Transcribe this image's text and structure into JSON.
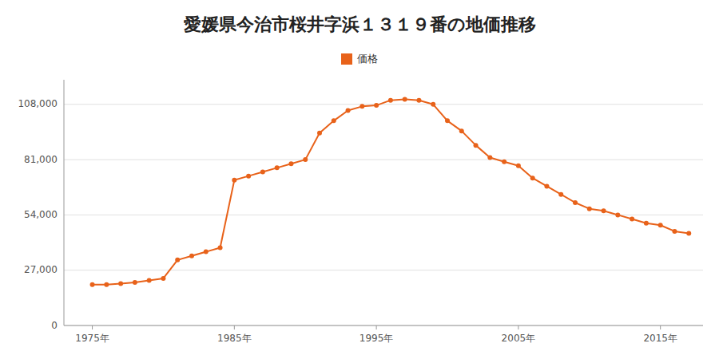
{
  "chart_data": {
    "type": "line",
    "title": "愛媛県今治市桜井字浜１３１９番の地価推移",
    "x": [
      1975,
      1976,
      1977,
      1978,
      1979,
      1980,
      1981,
      1982,
      1983,
      1984,
      1985,
      1986,
      1987,
      1988,
      1989,
      1990,
      1991,
      1992,
      1993,
      1994,
      1995,
      1996,
      1997,
      1998,
      1999,
      2000,
      2001,
      2002,
      2003,
      2004,
      2005,
      2006,
      2007,
      2008,
      2009,
      2010,
      2011,
      2012,
      2013,
      2014,
      2015,
      2016,
      2017
    ],
    "series": [
      {
        "name": "価格",
        "color": "#E8621A",
        "values": [
          20000,
          20000,
          20500,
          21000,
          22000,
          23000,
          32000,
          34000,
          36000,
          38000,
          71000,
          73000,
          75000,
          77000,
          79000,
          81000,
          94000,
          100000,
          105000,
          107000,
          107500,
          110000,
          110500,
          110000,
          108000,
          100000,
          95000,
          88000,
          82000,
          80000,
          78000,
          72000,
          68000,
          64000,
          60000,
          57000,
          56000,
          54000,
          52000,
          50000,
          49000,
          46000,
          45000
        ]
      }
    ],
    "xlim": [
      1973,
      2018
    ],
    "xticks": [
      {
        "value": 1975,
        "label": "1975年"
      },
      {
        "value": 1985,
        "label": "1985年"
      },
      {
        "value": 1995,
        "label": "1995年"
      },
      {
        "value": 2005,
        "label": "2005年"
      },
      {
        "value": 2015,
        "label": "2015年"
      }
    ],
    "ylim": [
      0,
      120000
    ],
    "yticks": [
      0,
      {
        "value": 27000,
        "label": "27,000"
      },
      {
        "value": 54000,
        "label": "54,000"
      },
      {
        "value": 81000,
        "label": "81,000"
      },
      {
        "value": 108000,
        "label": "108,000"
      }
    ],
    "grid": "y",
    "legend": "top",
    "marker": "circle"
  }
}
